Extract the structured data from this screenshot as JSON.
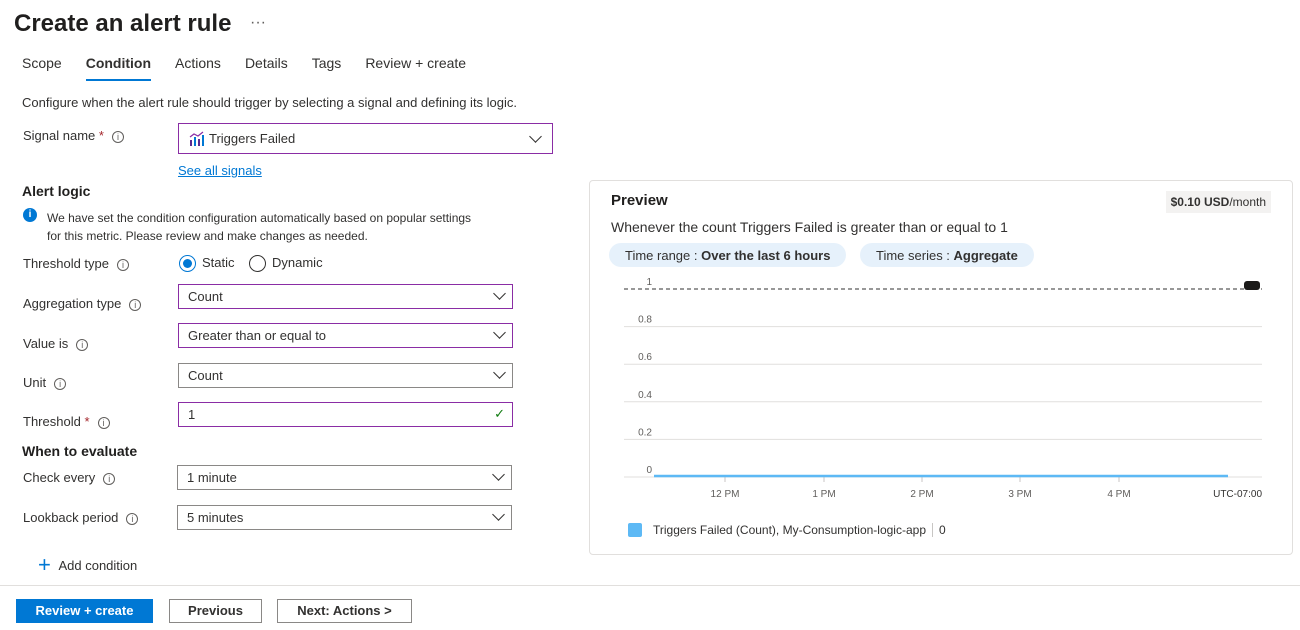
{
  "title": "Create an alert rule",
  "more": "···",
  "tabs": [
    {
      "label": "Scope"
    },
    {
      "label": "Condition"
    },
    {
      "label": "Actions"
    },
    {
      "label": "Details"
    },
    {
      "label": "Tags"
    },
    {
      "label": "Review + create"
    }
  ],
  "intro": "Configure when the alert rule should trigger by selecting a signal and defining its logic.",
  "signal": {
    "label": "Signal name",
    "value": "Triggers Failed",
    "see_all": "See all signals"
  },
  "alert_logic": {
    "heading": "Alert logic",
    "info_line1": "We have set the condition configuration automatically based on popular settings",
    "info_line2": "for this metric. Please review and make changes as needed.",
    "threshold_type": {
      "label": "Threshold type",
      "static": "Static",
      "dynamic": "Dynamic",
      "selected": "Static"
    },
    "aggregation": {
      "label": "Aggregation type",
      "value": "Count"
    },
    "operator": {
      "label": "Value is",
      "value": "Greater than or equal to"
    },
    "unit": {
      "label": "Unit",
      "value": "Count"
    },
    "threshold": {
      "label": "Threshold",
      "value": "1"
    }
  },
  "evaluate": {
    "heading": "When to evaluate",
    "check": {
      "label": "Check every",
      "value": "1 minute"
    },
    "lookback": {
      "label": "Lookback period",
      "value": "5 minutes"
    }
  },
  "add_condition": "Add condition",
  "preview": {
    "title": "Preview",
    "cost_amount": "$0.10 USD",
    "cost_unit": "/month",
    "summary": "Whenever the count Triggers Failed is greater than or equal to 1",
    "time_range_label": "Time range : ",
    "time_range": "Over the last 6 hours",
    "time_series_label": "Time series : ",
    "time_series": "Aggregate"
  },
  "chart_data": {
    "type": "line",
    "ylim": [
      0,
      1
    ],
    "yticks": [
      "0",
      "0.2",
      "0.4",
      "0.6",
      "0.8",
      "1"
    ],
    "xticks": [
      "12 PM",
      "1 PM",
      "2 PM",
      "3 PM",
      "4 PM"
    ],
    "timezone": "UTC-07:00",
    "threshold": 1,
    "series": [
      {
        "name": "Triggers Failed (Count), My-Consumption-logic-app",
        "value_label": "0",
        "values": [
          0,
          0,
          0,
          0,
          0,
          0
        ],
        "color": "#5db9f5"
      }
    ]
  },
  "footer": {
    "review": "Review + create",
    "previous": "Previous",
    "next": "Next: Actions >"
  }
}
